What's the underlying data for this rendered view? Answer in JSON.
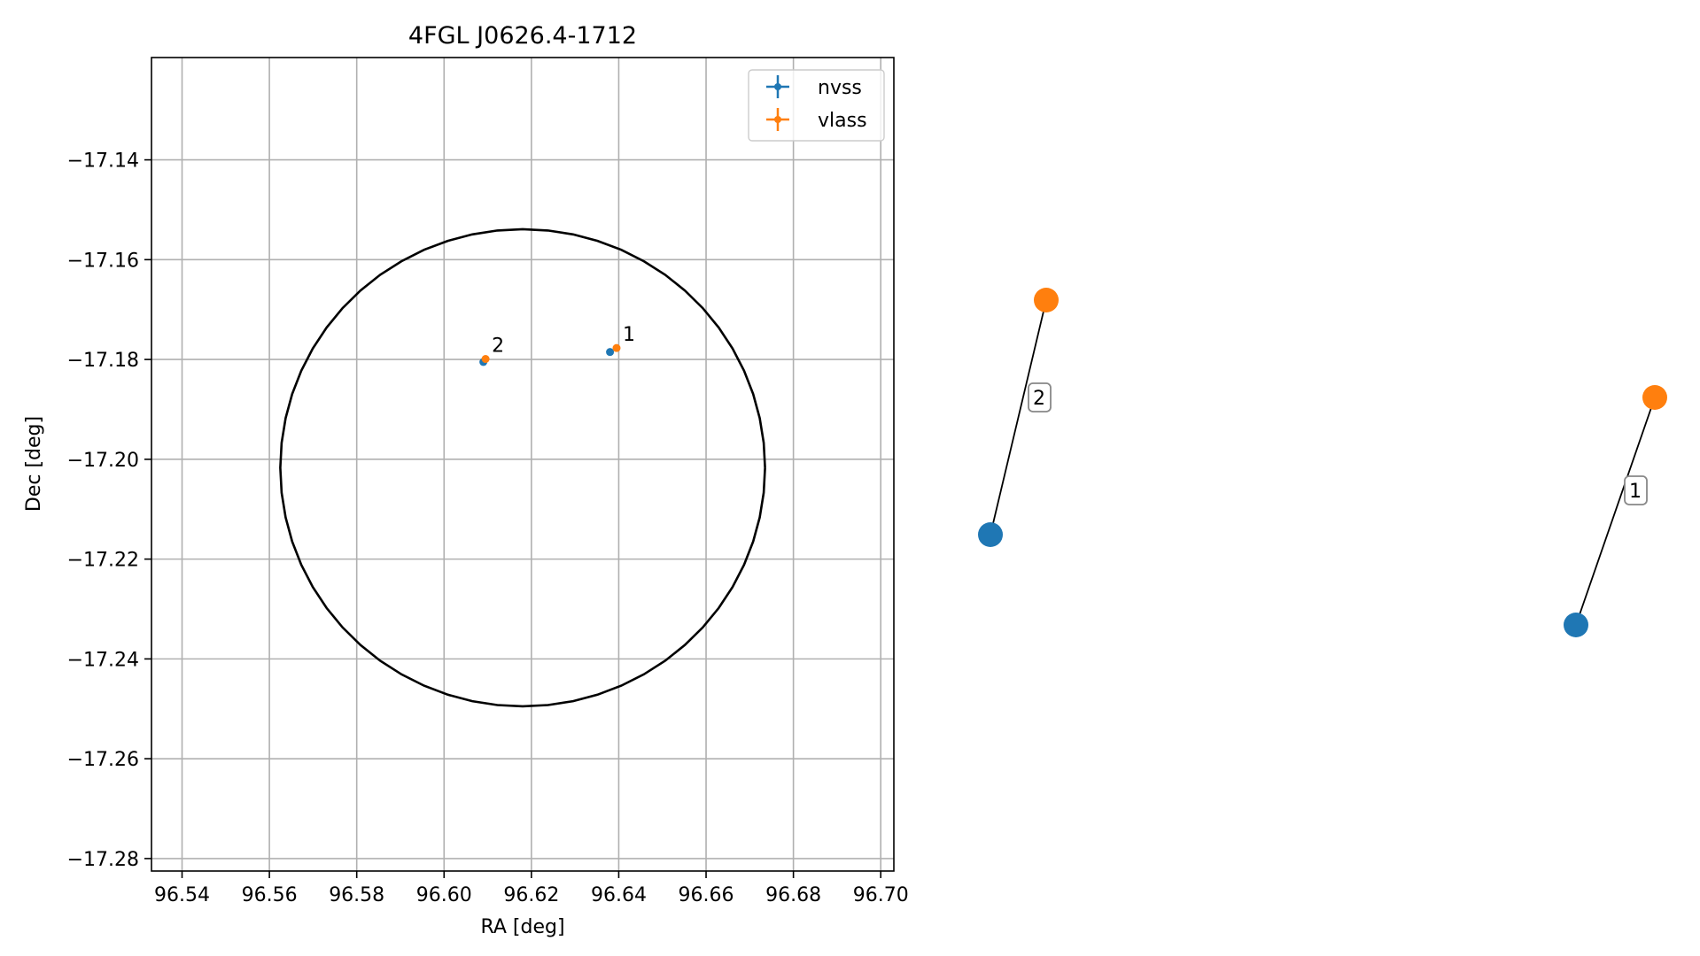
{
  "chart_data": [
    {
      "type": "scatter",
      "title": "4FGL J0626.4-1712",
      "xlabel": "RA [deg]",
      "ylabel": "Dec [deg]",
      "xlim": [
        96.533,
        96.703
      ],
      "ylim": [
        -17.2825,
        -17.1195
      ],
      "xticks": [
        96.54,
        96.56,
        96.58,
        96.6,
        96.62,
        96.64,
        96.66,
        96.68,
        96.7
      ],
      "xtick_labels": [
        "96.54",
        "96.56",
        "96.58",
        "96.60",
        "96.62",
        "96.64",
        "96.66",
        "96.68",
        "96.70"
      ],
      "yticks": [
        -17.14,
        -17.16,
        -17.18,
        -17.2,
        -17.22,
        -17.24,
        -17.26,
        -17.28
      ],
      "ytick_labels": [
        "−17.14",
        "−17.16",
        "−17.18",
        "−17.20",
        "−17.22",
        "−17.24",
        "−17.26",
        "−17.28"
      ],
      "grid": true,
      "legend_position": "top-right",
      "series": [
        {
          "name": "nvss",
          "color": "#1f77b4",
          "x": [
            96.638,
            96.609
          ],
          "y": [
            -17.1785,
            -17.1805
          ]
        },
        {
          "name": "vlass",
          "color": "#ff7f0e",
          "x": [
            96.6395,
            96.6095
          ],
          "y": [
            -17.1777,
            -17.1799
          ]
        }
      ],
      "annotations": [
        {
          "text": "1",
          "x": 96.6395,
          "y": -17.1777
        },
        {
          "text": "2",
          "x": 96.6095,
          "y": -17.1799
        }
      ],
      "ellipse": {
        "center": [
          96.618,
          -17.2017
        ],
        "ra_radius": 0.0555,
        "dec_radius": 0.0478,
        "color": "#000000"
      }
    },
    {
      "type": "scatter",
      "pairs": [
        {
          "label": "2",
          "nvss_color": "#1f77b4",
          "vlass_color": "#ff7f0e"
        },
        {
          "label": "1",
          "nvss_color": "#1f77b4",
          "vlass_color": "#ff7f0e"
        }
      ]
    }
  ]
}
